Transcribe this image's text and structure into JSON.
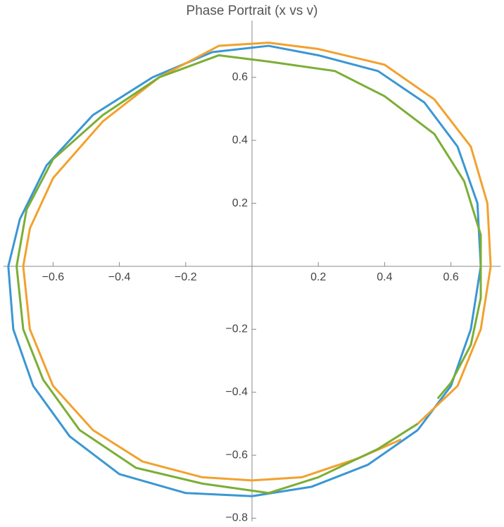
{
  "chart_data": {
    "type": "line",
    "title": "Phase Portrait (x vs v)",
    "xlim": [
      -0.75,
      0.75
    ],
    "ylim": [
      -0.81,
      0.78
    ],
    "xticks": [
      {
        "value": -0.6,
        "label": "−0.6"
      },
      {
        "value": -0.4,
        "label": "−0.4"
      },
      {
        "value": -0.2,
        "label": "−0.2"
      },
      0.2,
      0.4,
      0.6
    ],
    "yticks": [
      {
        "value": -0.8,
        "label": "−0.8"
      },
      {
        "value": -0.6,
        "label": "−0.6"
      },
      {
        "value": -0.4,
        "label": "−0.4"
      },
      {
        "value": -0.2,
        "label": "−0.2"
      },
      0.2,
      0.4,
      0.6
    ],
    "series": [
      {
        "color": "#3a97d3",
        "x": [
          0.5,
          0.6,
          0.66,
          0.69,
          0.68,
          0.62,
          0.52,
          0.38,
          0.2,
          0.05,
          -0.12,
          -0.3,
          -0.48,
          -0.62,
          -0.7,
          -0.735,
          -0.72,
          -0.66,
          -0.55,
          -0.4,
          -0.2,
          0,
          0.18,
          0.35,
          0.5
        ],
        "values": [
          -0.52,
          -0.38,
          -0.2,
          0,
          0.2,
          0.38,
          0.52,
          0.62,
          0.67,
          0.7,
          0.68,
          0.6,
          0.48,
          0.32,
          0.15,
          0,
          -0.2,
          -0.38,
          -0.54,
          -0.66,
          -0.72,
          -0.73,
          -0.7,
          -0.63,
          -0.52
        ]
      },
      {
        "color": "#f2a12e",
        "x": [
          0.5,
          0.62,
          0.69,
          0.72,
          0.71,
          0.66,
          0.55,
          0.4,
          0.2,
          0.05,
          -0.1,
          -0.28,
          -0.45,
          -0.6,
          -0.67,
          -0.69,
          -0.67,
          -0.6,
          -0.48,
          -0.33,
          -0.15,
          0,
          0.15,
          0.32,
          0.45
        ],
        "values": [
          -0.5,
          -0.38,
          -0.2,
          0,
          0.2,
          0.38,
          0.53,
          0.64,
          0.69,
          0.71,
          0.7,
          0.6,
          0.46,
          0.28,
          0.12,
          0,
          -0.2,
          -0.38,
          -0.52,
          -0.62,
          -0.67,
          -0.68,
          -0.67,
          -0.61,
          -0.55
        ]
      },
      {
        "color": "#7aae35",
        "x": [
          0.5,
          0.38,
          0.2,
          0.05,
          -0.15,
          -0.35,
          -0.52,
          -0.63,
          -0.69,
          -0.71,
          -0.68,
          -0.6,
          -0.45,
          -0.28,
          -0.1,
          0.05,
          0.25,
          0.4,
          0.55,
          0.64,
          0.69,
          0.69,
          0.66,
          0.6,
          0.56
        ],
        "values": [
          -0.5,
          -0.58,
          -0.67,
          -0.72,
          -0.69,
          -0.64,
          -0.52,
          -0.36,
          -0.2,
          0,
          0.18,
          0.34,
          0.48,
          0.6,
          0.67,
          0.65,
          0.62,
          0.54,
          0.42,
          0.27,
          0.1,
          -0.1,
          -0.25,
          -0.37,
          -0.42
        ]
      }
    ]
  }
}
